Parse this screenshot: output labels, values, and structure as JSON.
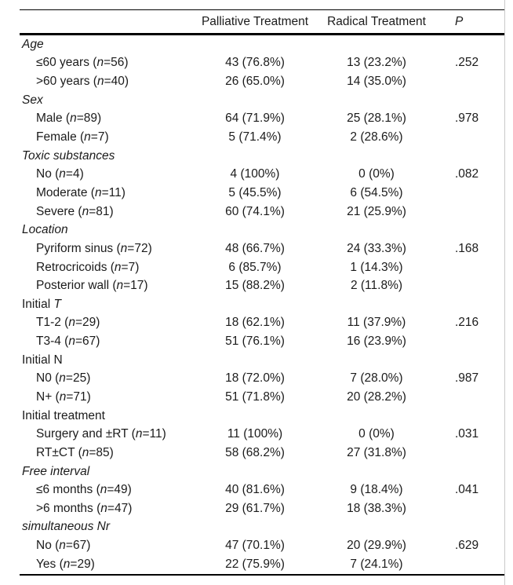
{
  "table": {
    "columns": {
      "treatment1": "Palliative Treatment",
      "treatment2": "Radical Treatment",
      "p": "P"
    },
    "n_symbol": "n",
    "rows": [
      {
        "kind": "group",
        "roman": "",
        "em": "Age",
        "pal": "",
        "rad": "",
        "p": ""
      },
      {
        "kind": "item",
        "label": "≤60 years",
        "n": "56",
        "pal": "43 (76.8%)",
        "rad": "13 (23.2%)",
        "p": ".252"
      },
      {
        "kind": "item",
        "label": ">60 years",
        "n": "40",
        "pal": "26 (65.0%)",
        "rad": "14 (35.0%)",
        "p": ""
      },
      {
        "kind": "group",
        "roman": "",
        "em": "Sex",
        "pal": "",
        "rad": "",
        "p": ""
      },
      {
        "kind": "item",
        "label": "Male",
        "n": "89",
        "pal": "64 (71.9%)",
        "rad": "25 (28.1%)",
        "p": ".978"
      },
      {
        "kind": "item",
        "label": "Female",
        "n": "7",
        "pal": "5 (71.4%)",
        "rad": "2 (28.6%)",
        "p": ""
      },
      {
        "kind": "group",
        "roman": "",
        "em": "Toxic substances",
        "pal": "",
        "rad": "",
        "p": ""
      },
      {
        "kind": "item",
        "label": "No",
        "n": "4",
        "pal": "4 (100%)",
        "rad": "0 (0%)",
        "p": ".082"
      },
      {
        "kind": "item",
        "label": "Moderate",
        "n": "11",
        "pal": "5 (45.5%)",
        "rad": "6 (54.5%)",
        "p": ""
      },
      {
        "kind": "item",
        "label": "Severe",
        "n": "81",
        "pal": "60 (74.1%)",
        "rad": "21 (25.9%)",
        "p": ""
      },
      {
        "kind": "group",
        "roman": "",
        "em": "Location",
        "pal": "",
        "rad": "",
        "p": ""
      },
      {
        "kind": "item",
        "label": "Pyriform sinus",
        "n": "72",
        "pal": "48 (66.7%)",
        "rad": "24 (33.3%)",
        "p": ".168"
      },
      {
        "kind": "item",
        "label": "Retrocricoids",
        "n": "7",
        "pal": "6 (85.7%)",
        "rad": "1 (14.3%)",
        "p": ""
      },
      {
        "kind": "item",
        "label": "Posterior wall",
        "n": "17",
        "pal": "15 (88.2%)",
        "rad": "2 (11.8%)",
        "p": ""
      },
      {
        "kind": "group",
        "roman": "Initial ",
        "em": "T",
        "pal": "",
        "rad": "",
        "p": ""
      },
      {
        "kind": "item",
        "label": "T1-2",
        "n": "29",
        "pal": "18 (62.1%)",
        "rad": "11 (37.9%)",
        "p": ".216"
      },
      {
        "kind": "item",
        "label": "T3-4",
        "n": "67",
        "pal": "51 (76.1%)",
        "rad": "16 (23.9%)",
        "p": ""
      },
      {
        "kind": "group",
        "roman": "Initial N",
        "em": "",
        "pal": "",
        "rad": "",
        "p": ""
      },
      {
        "kind": "item",
        "label": "N0",
        "n": "25",
        "pal": "18 (72.0%)",
        "rad": "7 (28.0%)",
        "p": ".987"
      },
      {
        "kind": "item",
        "label": "N+",
        "n": "71",
        "pal": "51 (71.8%)",
        "rad": "20 (28.2%)",
        "p": ""
      },
      {
        "kind": "group",
        "roman": "Initial treatment",
        "em": "",
        "pal": "",
        "rad": "",
        "p": ""
      },
      {
        "kind": "item",
        "label": "Surgery and ±RT",
        "n": "11",
        "pal": "11 (100%)",
        "rad": "0 (0%)",
        "p": ".031"
      },
      {
        "kind": "item",
        "label": "RT±CT",
        "n": "85",
        "pal": "58 (68.2%)",
        "rad": "27 (31.8%)",
        "p": ""
      },
      {
        "kind": "group",
        "roman": "",
        "em": "Free interval",
        "pal": "",
        "rad": "",
        "p": ""
      },
      {
        "kind": "item",
        "label": "≤6 months",
        "n": "49",
        "pal": "40 (81.6%)",
        "rad": "9 (18.4%)",
        "p": ".041"
      },
      {
        "kind": "item",
        "label": ">6 months",
        "n": "47",
        "pal": "29 (61.7%)",
        "rad": "18 (38.3%)",
        "p": ""
      },
      {
        "kind": "group",
        "roman": "",
        "em": "simultaneous Nr",
        "pal": "",
        "rad": "",
        "p": ""
      },
      {
        "kind": "item",
        "label": "No",
        "n": "67",
        "pal": "47 (70.1%)",
        "rad": "20 (29.9%)",
        "p": ".629"
      },
      {
        "kind": "item",
        "label": "Yes",
        "n": "29",
        "pal": "22 (75.9%)",
        "rad": "7 (24.1%)",
        "p": ""
      }
    ]
  },
  "colors": {
    "text": "#1b1b1b",
    "rule": "#000000",
    "page_edge": "#c9c9c9"
  }
}
